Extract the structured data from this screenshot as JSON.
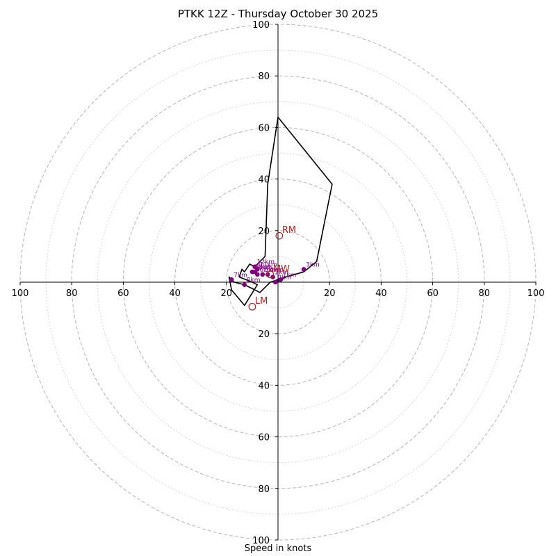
{
  "chart_data": {
    "type": "hodograph",
    "title": "PTKK 12Z - Thursday October 30 2025",
    "xlabel": "Speed in knots",
    "range": [
      -100,
      100
    ],
    "ring_major": [
      20,
      40,
      60,
      80,
      100
    ],
    "ring_minor": [
      10,
      30,
      50,
      70,
      90
    ],
    "axis_tick_labels": [
      "100",
      "80",
      "60",
      "40",
      "20",
      "20",
      "40",
      "60",
      "80",
      "100"
    ],
    "axis_ticks_x": [
      -100,
      -80,
      -60,
      -40,
      -20,
      20,
      40,
      60,
      80,
      100
    ],
    "axis_ticks_y": [
      100,
      80,
      60,
      40,
      20,
      -20,
      -40,
      -60,
      -80,
      -100
    ],
    "hodograph_line": [
      [
        2,
        1
      ],
      [
        -1,
        0
      ],
      [
        3,
        2
      ],
      [
        10,
        4
      ],
      [
        15,
        8
      ],
      [
        21,
        38
      ],
      [
        0,
        64
      ],
      [
        -4,
        38
      ],
      [
        -5,
        10
      ],
      [
        -7,
        8
      ],
      [
        -9,
        6
      ],
      [
        -11,
        7
      ],
      [
        -13,
        4
      ],
      [
        -14,
        5
      ],
      [
        -15,
        2
      ],
      [
        -10,
        0
      ],
      [
        -8,
        -1
      ],
      [
        -13,
        -9
      ],
      [
        -18,
        -3
      ],
      [
        -19,
        2
      ],
      [
        -17,
        0
      ],
      [
        -13,
        -1
      ],
      [
        -11,
        -2
      ],
      [
        -7,
        -4
      ],
      [
        -3,
        0
      ],
      [
        0,
        1
      ]
    ],
    "height_markers": [
      {
        "label": "0km",
        "u": -1,
        "v": 0
      },
      {
        "label": "1km",
        "u": 1,
        "v": 1
      },
      {
        "label": "2km",
        "u": -2,
        "v": 2
      },
      {
        "label": "3km",
        "u": 10,
        "v": 5
      },
      {
        "label": "4km",
        "u": -4,
        "v": 3
      },
      {
        "label": "5km",
        "u": -6,
        "v": 3
      },
      {
        "label": "6km",
        "u": -8,
        "v": 3
      },
      {
        "label": "7km",
        "u": -18,
        "v": 1
      },
      {
        "label": "8km",
        "u": -13,
        "v": -1
      },
      {
        "label": "9km",
        "u": -9,
        "v": 4
      },
      {
        "label": "10km",
        "u": -10,
        "v": 4
      },
      {
        "label": "11km",
        "u": -8,
        "v": 5
      },
      {
        "label": "12km",
        "u": -9,
        "v": 6
      }
    ],
    "storm_motion": [
      {
        "label": "RM",
        "u": 0.5,
        "v": 18
      },
      {
        "label": "MW",
        "u": -3,
        "v": 3
      },
      {
        "label": "LM",
        "u": -10,
        "v": -9.5
      }
    ]
  }
}
